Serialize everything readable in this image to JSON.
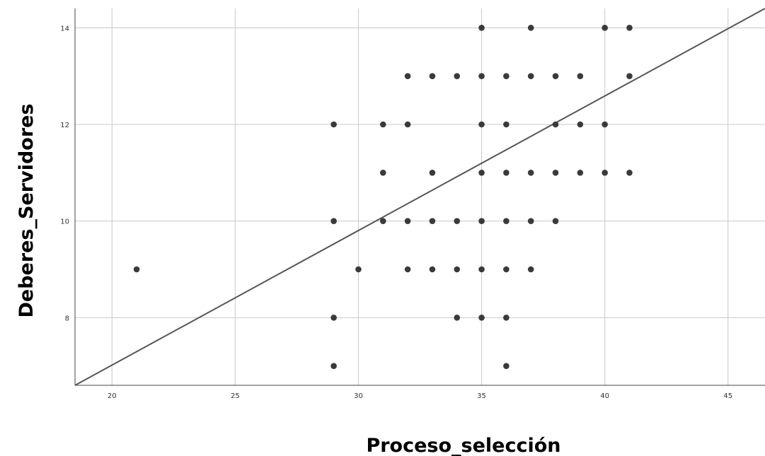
{
  "chart_data": {
    "type": "scatter",
    "title": "",
    "xlabel": "Proceso_selección",
    "ylabel": "Deberes_Servidores",
    "xlim": [
      18.5,
      46.5
    ],
    "ylim": [
      6.6,
      14.4
    ],
    "x_ticks": [
      20,
      25,
      30,
      35,
      40,
      45
    ],
    "y_ticks": [
      8,
      10,
      12,
      14
    ],
    "grid": true,
    "colors": {
      "points": "#3a3a3a",
      "fit_line": "#555555",
      "grid": "#c8c8c8"
    },
    "points": [
      {
        "x": 35,
        "y": 14
      },
      {
        "x": 37,
        "y": 14
      },
      {
        "x": 40,
        "y": 14
      },
      {
        "x": 41,
        "y": 14
      },
      {
        "x": 32,
        "y": 13
      },
      {
        "x": 33,
        "y": 13
      },
      {
        "x": 34,
        "y": 13
      },
      {
        "x": 35,
        "y": 13
      },
      {
        "x": 36,
        "y": 13
      },
      {
        "x": 37,
        "y": 13
      },
      {
        "x": 38,
        "y": 13
      },
      {
        "x": 39,
        "y": 13
      },
      {
        "x": 41,
        "y": 13
      },
      {
        "x": 29,
        "y": 12
      },
      {
        "x": 31,
        "y": 12
      },
      {
        "x": 32,
        "y": 12
      },
      {
        "x": 35,
        "y": 12
      },
      {
        "x": 36,
        "y": 12
      },
      {
        "x": 38,
        "y": 12
      },
      {
        "x": 39,
        "y": 12
      },
      {
        "x": 40,
        "y": 12
      },
      {
        "x": 31,
        "y": 11
      },
      {
        "x": 33,
        "y": 11
      },
      {
        "x": 35,
        "y": 11
      },
      {
        "x": 36,
        "y": 11
      },
      {
        "x": 37,
        "y": 11
      },
      {
        "x": 38,
        "y": 11
      },
      {
        "x": 39,
        "y": 11
      },
      {
        "x": 40,
        "y": 11
      },
      {
        "x": 41,
        "y": 11
      },
      {
        "x": 29,
        "y": 10
      },
      {
        "x": 31,
        "y": 10
      },
      {
        "x": 32,
        "y": 10
      },
      {
        "x": 33,
        "y": 10
      },
      {
        "x": 34,
        "y": 10
      },
      {
        "x": 35,
        "y": 10
      },
      {
        "x": 36,
        "y": 10
      },
      {
        "x": 37,
        "y": 10
      },
      {
        "x": 38,
        "y": 10
      },
      {
        "x": 21,
        "y": 9
      },
      {
        "x": 30,
        "y": 9
      },
      {
        "x": 32,
        "y": 9
      },
      {
        "x": 33,
        "y": 9
      },
      {
        "x": 34,
        "y": 9
      },
      {
        "x": 35,
        "y": 9
      },
      {
        "x": 36,
        "y": 9
      },
      {
        "x": 37,
        "y": 9
      },
      {
        "x": 29,
        "y": 8
      },
      {
        "x": 34,
        "y": 8
      },
      {
        "x": 35,
        "y": 8
      },
      {
        "x": 36,
        "y": 8
      },
      {
        "x": 29,
        "y": 7
      },
      {
        "x": 36,
        "y": 7
      }
    ],
    "fit_line": {
      "x": [
        18.5,
        46.5
      ],
      "y": [
        6.6,
        14.4
      ]
    }
  }
}
